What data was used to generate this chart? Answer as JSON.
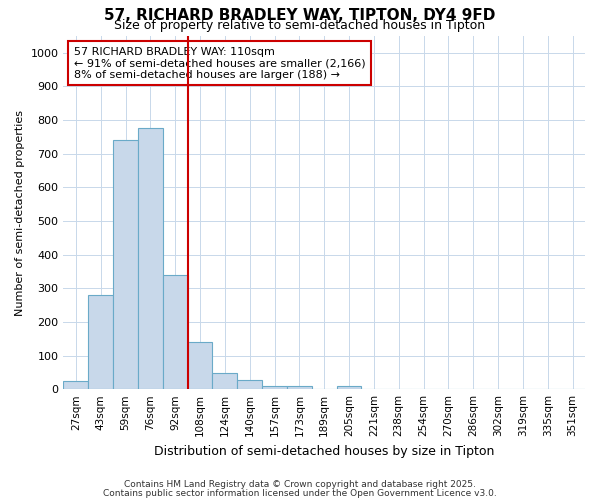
{
  "title": "57, RICHARD BRADLEY WAY, TIPTON, DY4 9FD",
  "subtitle": "Size of property relative to semi-detached houses in Tipton",
  "xlabel": "Distribution of semi-detached houses by size in Tipton",
  "ylabel": "Number of semi-detached properties",
  "bar_labels": [
    "27sqm",
    "43sqm",
    "59sqm",
    "76sqm",
    "92sqm",
    "108sqm",
    "124sqm",
    "140sqm",
    "157sqm",
    "173sqm",
    "189sqm",
    "205sqm",
    "221sqm",
    "238sqm",
    "254sqm",
    "270sqm",
    "286sqm",
    "302sqm",
    "319sqm",
    "335sqm",
    "351sqm"
  ],
  "bar_values": [
    25,
    280,
    740,
    775,
    340,
    140,
    47,
    27,
    10,
    10,
    0,
    10,
    0,
    0,
    0,
    0,
    0,
    0,
    0,
    0,
    0
  ],
  "bar_color": "#c8d8ea",
  "bar_edge_color": "#6aaac8",
  "property_line_x": 4.5,
  "property_line_color": "#cc0000",
  "annotation_text": "57 RICHARD BRADLEY WAY: 110sqm\n← 91% of semi-detached houses are smaller (2,166)\n8% of semi-detached houses are larger (188) →",
  "annotation_box_color": "#cc0000",
  "ylim": [
    0,
    1050
  ],
  "yticks": [
    0,
    100,
    200,
    300,
    400,
    500,
    600,
    700,
    800,
    900,
    1000
  ],
  "footer1": "Contains HM Land Registry data © Crown copyright and database right 2025.",
  "footer2": "Contains public sector information licensed under the Open Government Licence v3.0.",
  "background_color": "#ffffff",
  "grid_color": "#c8d8ea",
  "title_fontsize": 11,
  "subtitle_fontsize": 9,
  "ylabel_fontsize": 8,
  "xlabel_fontsize": 9
}
